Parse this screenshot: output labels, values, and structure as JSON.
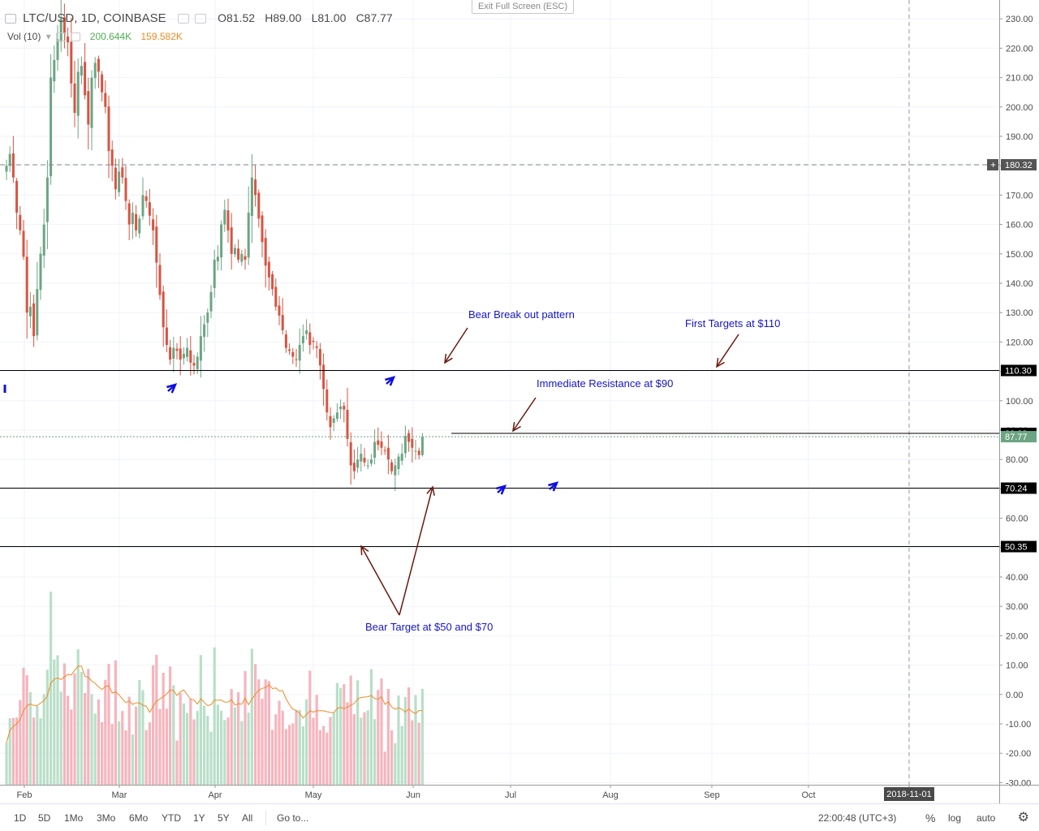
{
  "header": {
    "symbol": "LTC/USD, 1D, COINBASE",
    "open": "O81.52",
    "high": "H89.00",
    "low": "L81.00",
    "close": "C87.77",
    "vol_label": "Vol (10)",
    "vol_value": "200.644K",
    "vol_ma": "159.582K",
    "exit_fullscreen": "Exit Full Screen (ESC)"
  },
  "colors": {
    "up": "#6ba583",
    "down": "#d75442",
    "vol_up": "#b9dfc8",
    "vol_down": "#f5b5bd",
    "vol_ma": "#f08a24",
    "annotation_text": "#1515c8",
    "annotation_arrow": "#6b1a0e",
    "blue_arrow": "#1010e0"
  },
  "chart_data": {
    "type": "candlestick",
    "symbol": "LTC/USD",
    "interval": "1D",
    "exchange": "COINBASE",
    "y_range": [
      -30,
      235
    ],
    "y_ticks": [
      "230.00",
      "220.00",
      "210.00",
      "200.00",
      "190.00",
      "180.00",
      "170.00",
      "160.00",
      "150.00",
      "140.00",
      "130.00",
      "120.00",
      "110.00",
      "100.00",
      "90.00",
      "80.00",
      "70.00",
      "60.00",
      "50.00",
      "40.00",
      "30.00",
      "20.00",
      "10.00",
      "0.00",
      "-10.00",
      "-20.00",
      "-30.00"
    ],
    "x_ticks": [
      "Feb",
      "Mar",
      "Apr",
      "May",
      "Jun",
      "Jul",
      "Aug",
      "Sep",
      "Oct",
      "2018-11-01"
    ],
    "horizontal_lines": [
      {
        "value": 110.3,
        "label": "110.30",
        "style": "solid"
      },
      {
        "value": 70.24,
        "label": "70.24",
        "style": "solid"
      },
      {
        "value": 50.35,
        "label": "50.35",
        "style": "solid"
      },
      {
        "value": 88.88,
        "label": "88.88",
        "style": "solid"
      },
      {
        "value": 180.32,
        "label": "180.32",
        "style": "dashed"
      }
    ],
    "last_price": {
      "value": 87.77,
      "label": "87.77"
    },
    "closes": [
      180,
      184,
      176,
      164,
      158,
      149,
      130,
      132,
      122,
      138,
      150,
      160,
      176,
      210,
      216,
      223,
      230,
      225,
      222,
      208,
      198,
      212,
      214,
      204,
      194,
      210,
      215,
      212,
      205,
      200,
      185,
      180,
      172,
      178,
      176,
      168,
      160,
      164,
      158,
      162,
      170,
      168,
      163,
      158,
      147,
      136,
      125,
      119,
      114,
      118,
      117,
      114,
      116,
      118,
      113,
      112,
      115,
      122,
      126,
      130,
      137,
      148,
      149,
      160,
      165,
      158,
      150,
      152,
      148,
      150,
      148,
      164,
      176,
      170,
      162,
      154,
      146,
      142,
      138,
      132,
      129,
      124,
      118,
      117,
      115,
      114,
      119,
      122,
      124,
      119,
      120,
      118,
      112,
      104,
      96,
      91,
      94,
      96,
      98,
      97,
      87,
      78,
      76,
      80,
      82,
      79,
      78,
      80,
      86,
      85,
      84,
      83,
      80,
      76,
      78,
      81,
      82,
      88,
      86,
      84,
      83,
      81.5,
      87.77
    ],
    "volume_series": "Vol (10)",
    "volume_last": "200.644K",
    "volume_ma_last": "159.582K",
    "annotations": [
      {
        "text": "Bear Break out pattern"
      },
      {
        "text": "First Targets at $110"
      },
      {
        "text": "Immediate Resistance at $90"
      },
      {
        "text": "Bear Target at $50 and $70"
      }
    ]
  },
  "bottom_bar": {
    "ranges": [
      "1D",
      "5D",
      "1Mo",
      "3Mo",
      "6Mo",
      "YTD",
      "1Y",
      "5Y",
      "All"
    ],
    "goto": "Go to...",
    "time": "22:00:48 (UTC+3)",
    "percent": "%",
    "log": "log",
    "auto": "auto",
    "settings_icon": "gear-icon"
  }
}
